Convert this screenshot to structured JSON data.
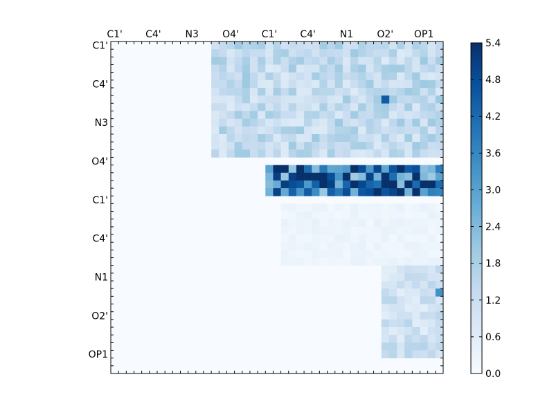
{
  "chart_data": {
    "type": "heatmap",
    "title": "",
    "xlabel": "",
    "ylabel": "",
    "x_tick_labels": [
      "C1'",
      "C4'",
      "N3",
      "O4'",
      "C1'",
      "C4'",
      "N1",
      "O2'",
      "OP1"
    ],
    "y_tick_labels": [
      "C1'",
      "C4'",
      "N3",
      "O4'",
      "C1'",
      "C4'",
      "N1",
      "O2'",
      "OP1"
    ],
    "grid": false,
    "n_cells": 43,
    "colormap": "Blues",
    "colorbar": {
      "position": "right",
      "min": 0.0,
      "max": 5.4,
      "tick_labels": [
        "0.0",
        "0.6",
        "1.2",
        "1.8",
        "2.4",
        "3.0",
        "3.6",
        "4.2",
        "4.8",
        "5.4"
      ]
    },
    "blocks": [
      {
        "rows": [
          0,
          14
        ],
        "cols": [
          13,
          42
        ],
        "approx_value": 1.5
      },
      {
        "rows": [
          16,
          19
        ],
        "cols": [
          20,
          42
        ],
        "approx_value": 4.4
      },
      {
        "rows": [
          21,
          28
        ],
        "cols": [
          22,
          42
        ],
        "approx_value": 0.3
      },
      {
        "rows": [
          29,
          40
        ],
        "cols": [
          35,
          42
        ],
        "approx_value": 1.2
      }
    ],
    "highlights": [
      {
        "row": 7,
        "col": 35,
        "value": 4.5
      },
      {
        "row": 17,
        "col": 35,
        "value": 5.3
      },
      {
        "row": 18,
        "col": 36,
        "value": 5.4
      },
      {
        "row": 32,
        "col": 42,
        "value": 3.4
      }
    ]
  }
}
